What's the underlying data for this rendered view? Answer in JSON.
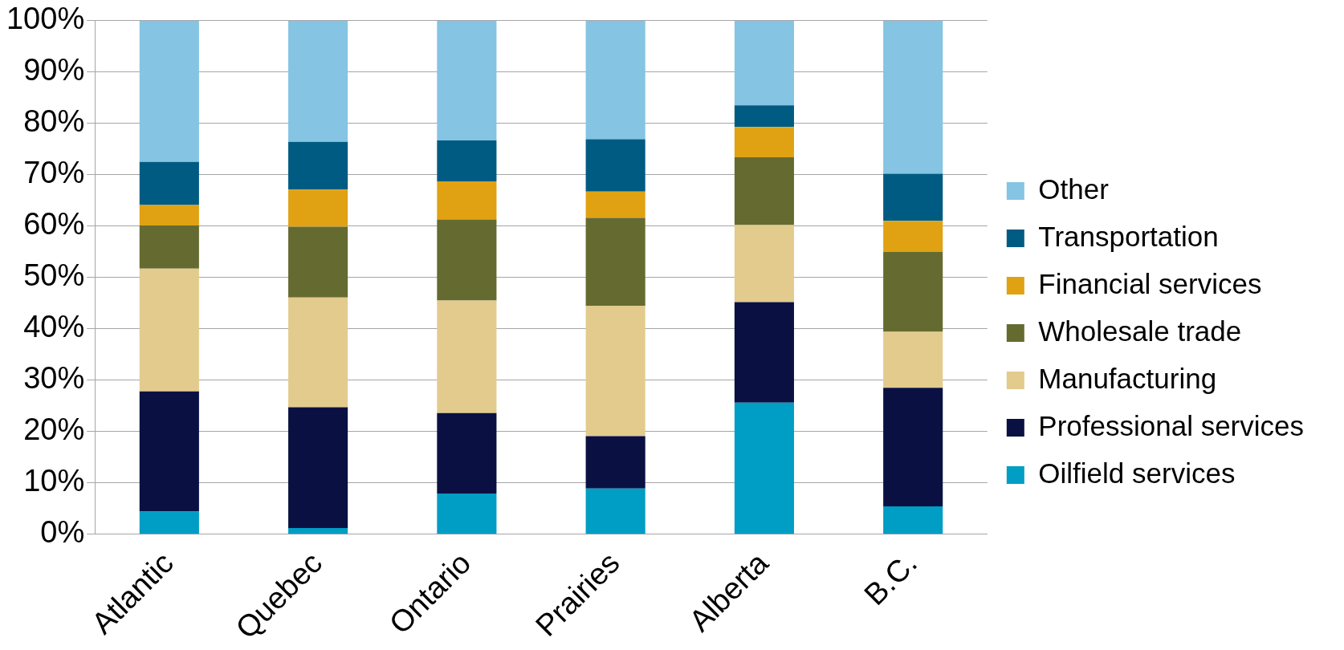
{
  "chart_data": {
    "type": "bar",
    "stacked": true,
    "categories": [
      "Atlantic",
      "Quebec",
      "Ontario",
      "Prairies",
      "Alberta",
      "B.C."
    ],
    "series": [
      {
        "name": "Oilfield services",
        "color": "#009dc4",
        "values": [
          4.4,
          1.2,
          7.9,
          8.9,
          25.6,
          5.4
        ]
      },
      {
        "name": "Professional services",
        "color": "#0a1142",
        "values": [
          23.4,
          23.5,
          15.7,
          10.2,
          19.6,
          23.1
        ]
      },
      {
        "name": "Manufacturing",
        "color": "#e3cb8d",
        "values": [
          23.9,
          21.4,
          21.9,
          25.4,
          15.0,
          10.9
        ]
      },
      {
        "name": "Wholesale trade",
        "color": "#656b30",
        "values": [
          8.4,
          13.8,
          15.8,
          17.1,
          13.2,
          15.6
        ]
      },
      {
        "name": "Financial services",
        "color": "#e0a212",
        "values": [
          4.0,
          7.2,
          7.4,
          5.1,
          5.9,
          6.0
        ]
      },
      {
        "name": "Transportation",
        "color": "#005b82",
        "values": [
          8.4,
          9.3,
          8.0,
          10.2,
          4.2,
          9.2
        ]
      },
      {
        "name": "Other",
        "color": "#85c4e2",
        "values": [
          27.5,
          23.6,
          23.3,
          23.1,
          16.5,
          29.8
        ]
      }
    ],
    "ylim": [
      0,
      100
    ],
    "yticks": [
      {
        "value": 0,
        "label": "0%"
      },
      {
        "value": 10,
        "label": "10%"
      },
      {
        "value": 20,
        "label": "20%"
      },
      {
        "value": 30,
        "label": "30%"
      },
      {
        "value": 40,
        "label": "40%"
      },
      {
        "value": 50,
        "label": "50%"
      },
      {
        "value": 60,
        "label": "60%"
      },
      {
        "value": 70,
        "label": "70%"
      },
      {
        "value": 80,
        "label": "80%"
      },
      {
        "value": 90,
        "label": "90%"
      },
      {
        "value": 100,
        "label": "100%"
      }
    ],
    "grid": "y",
    "legend": "right"
  }
}
